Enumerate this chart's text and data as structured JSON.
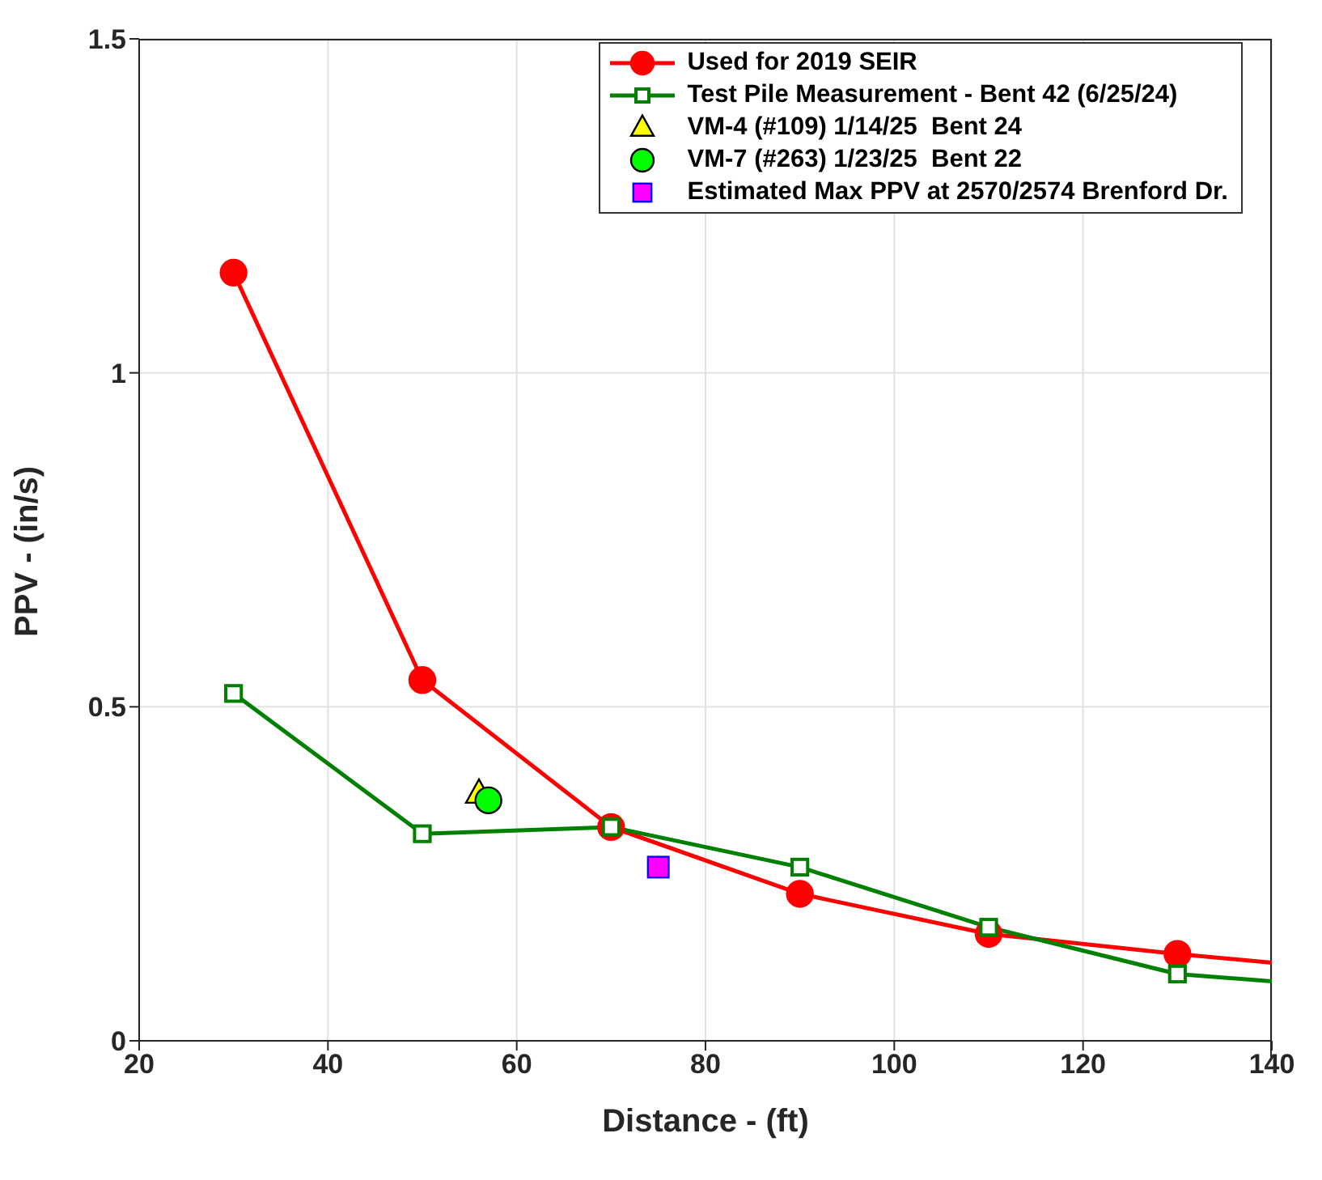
{
  "chart_data": {
    "type": "line",
    "xlabel": "Distance - (ft)",
    "ylabel": "PPV - (in/s)",
    "xlim": [
      20,
      140
    ],
    "xticks": [
      20,
      40,
      60,
      80,
      100,
      120,
      140
    ],
    "ylim": [
      0,
      1.5
    ],
    "yticks": [
      0,
      0.5,
      1,
      1.5
    ],
    "grid": true,
    "legend": "top right",
    "series": [
      {
        "name": "Used for 2019 SEIR",
        "marker": "circle",
        "color": "#ff0000",
        "x": [
          30,
          50,
          70,
          90,
          110,
          130,
          140
        ],
        "values": [
          1.15,
          0.54,
          0.32,
          0.22,
          0.16,
          0.13,
          0.117
        ]
      },
      {
        "name": "Test Pile Measurement - Bent 42 (6/25/24)",
        "marker": "square",
        "color": "#008000",
        "x": [
          30,
          50,
          70,
          90,
          110,
          130,
          140
        ],
        "values": [
          0.52,
          0.31,
          0.32,
          0.26,
          0.17,
          0.1,
          0.089
        ]
      },
      {
        "name": "VM-4 (#109) 1/14/25  Bent 24",
        "type": "scatter",
        "marker": "triangle",
        "color": "#ffff00",
        "x": [
          56
        ],
        "values": [
          0.37
        ]
      },
      {
        "name": "VM-7 (#263) 1/23/25  Bent 22",
        "type": "scatter",
        "marker": "circle",
        "color": "#00ff00",
        "x": [
          57
        ],
        "values": [
          0.36
        ]
      },
      {
        "name": "Estimated Max PPV at 2570/2574 Brenford Dr.",
        "type": "scatter",
        "marker": "square",
        "color": "#ff00ff",
        "x": [
          75
        ],
        "values": [
          0.26
        ]
      }
    ]
  }
}
